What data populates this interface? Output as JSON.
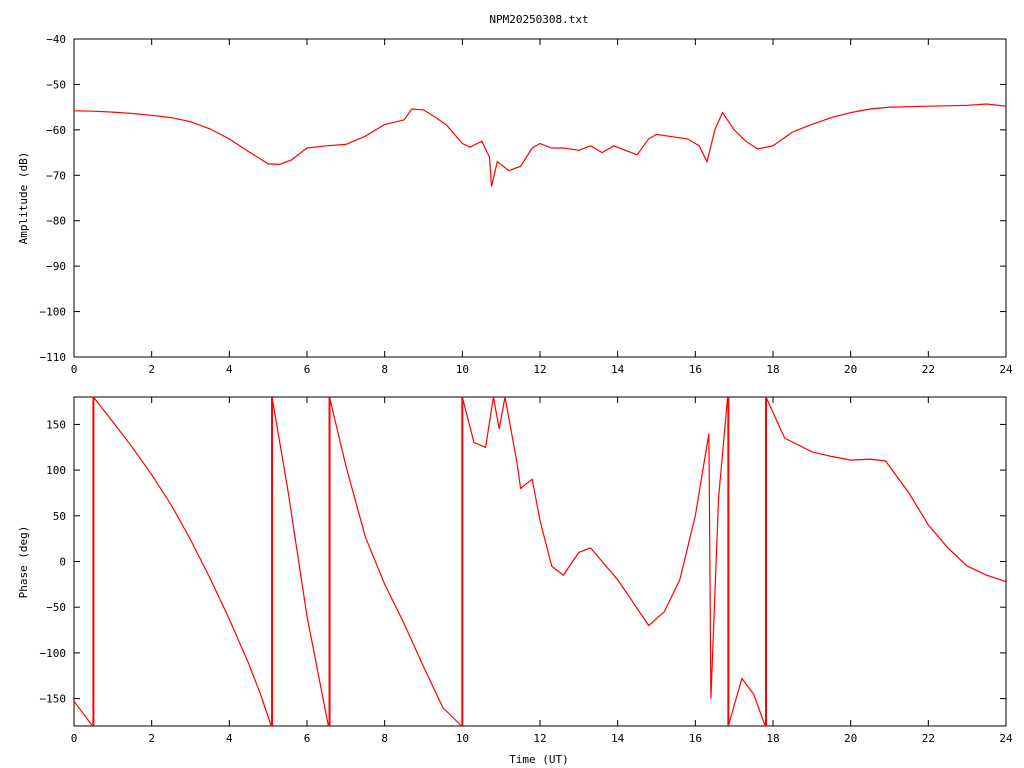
{
  "title": "NPM20250308.txt",
  "x_axis": {
    "label": "Time (UT)",
    "range": [
      0,
      24
    ],
    "ticks": [
      0,
      2,
      4,
      6,
      8,
      10,
      12,
      14,
      16,
      18,
      20,
      22,
      24
    ]
  },
  "line_color": "#ff0000",
  "chart_data": [
    {
      "type": "line",
      "ylabel": "Amplitude (dB)",
      "ylim": [
        -110,
        -40
      ],
      "yticks": [
        -40,
        -50,
        -60,
        -70,
        -80,
        -90,
        -100,
        -110
      ],
      "grid": false,
      "x": [
        0,
        0.5,
        1,
        1.5,
        2,
        2.5,
        3,
        3.5,
        4,
        4.5,
        5,
        5.3,
        5.6,
        6,
        6.5,
        7,
        7.5,
        8,
        8.5,
        8.7,
        9,
        9.3,
        9.6,
        10,
        10.2,
        10.5,
        10.7,
        10.75,
        10.9,
        11.2,
        11.5,
        11.8,
        12,
        12.3,
        12.6,
        13,
        13.3,
        13.6,
        13.9,
        14.2,
        14.5,
        14.8,
        15,
        15.4,
        15.8,
        16.1,
        16.3,
        16.5,
        16.7,
        17,
        17.3,
        17.6,
        18,
        18.5,
        19,
        19.5,
        20,
        20.5,
        21,
        21.5,
        22,
        22.5,
        23,
        23.5,
        24
      ],
      "values": [
        -55.8,
        -55.9,
        -56.1,
        -56.4,
        -56.8,
        -57.3,
        -58.2,
        -59.8,
        -62,
        -64.8,
        -67.5,
        -67.6,
        -66.6,
        -64,
        -63.5,
        -63.2,
        -61.4,
        -58.8,
        -57.8,
        -55.4,
        -55.6,
        -57.2,
        -59,
        -63,
        -63.8,
        -62.5,
        -66,
        -72.5,
        -67,
        -69,
        -68,
        -64,
        -63,
        -64,
        -64,
        -64.5,
        -63.5,
        -65,
        -63.5,
        -64.5,
        -65.5,
        -62,
        -61,
        -61.5,
        -62,
        -63.5,
        -67,
        -60,
        -56.2,
        -60,
        -62.5,
        -64.2,
        -63.5,
        -60.5,
        -58.8,
        -57.3,
        -56.2,
        -55.4,
        -55,
        -54.9,
        -54.8,
        -54.7,
        -54.6,
        -54.3,
        -54.8
      ]
    },
    {
      "type": "line",
      "ylabel": "Phase (deg)",
      "ylim": [
        -180,
        180
      ],
      "yticks": [
        150,
        100,
        50,
        0,
        -50,
        -100,
        -150
      ],
      "grid": false,
      "x": [
        0,
        0.48,
        0.5,
        1,
        1.5,
        2,
        2.5,
        3,
        3.5,
        4,
        4.5,
        4.8,
        5.08,
        5.1,
        5.5,
        6,
        6.55,
        6.58,
        7,
        7.5,
        8,
        8.5,
        9,
        9.5,
        9.98,
        10,
        10.3,
        10.6,
        10.8,
        10.95,
        11.1,
        11.4,
        11.5,
        11.8,
        12,
        12.3,
        12.6,
        13,
        13.3,
        13.6,
        14,
        14.4,
        14.8,
        15.2,
        15.6,
        16,
        16.35,
        16.4,
        16.6,
        16.83,
        16.85,
        17.2,
        17.5,
        17.8,
        17.82,
        18.3,
        19,
        19.5,
        20,
        20.5,
        20.9,
        21.5,
        22,
        22.5,
        23,
        23.5,
        24
      ],
      "values": [
        -153,
        -180,
        180,
        153,
        125,
        95,
        62,
        24,
        -18,
        -63,
        -112,
        -145,
        -180,
        180,
        80,
        -60,
        -180,
        180,
        105,
        27,
        -25,
        -68,
        -115,
        -160,
        -180,
        180,
        130,
        125,
        180,
        145,
        180,
        110,
        80,
        90,
        45,
        -5,
        -15,
        10,
        15,
        0,
        -20,
        -45,
        -70,
        -55,
        -20,
        50,
        140,
        -150,
        70,
        180,
        -180,
        -128,
        -145,
        -180,
        180,
        135,
        120,
        115,
        111,
        112,
        110,
        75,
        40,
        15,
        -5,
        -15,
        -22
      ]
    }
  ]
}
